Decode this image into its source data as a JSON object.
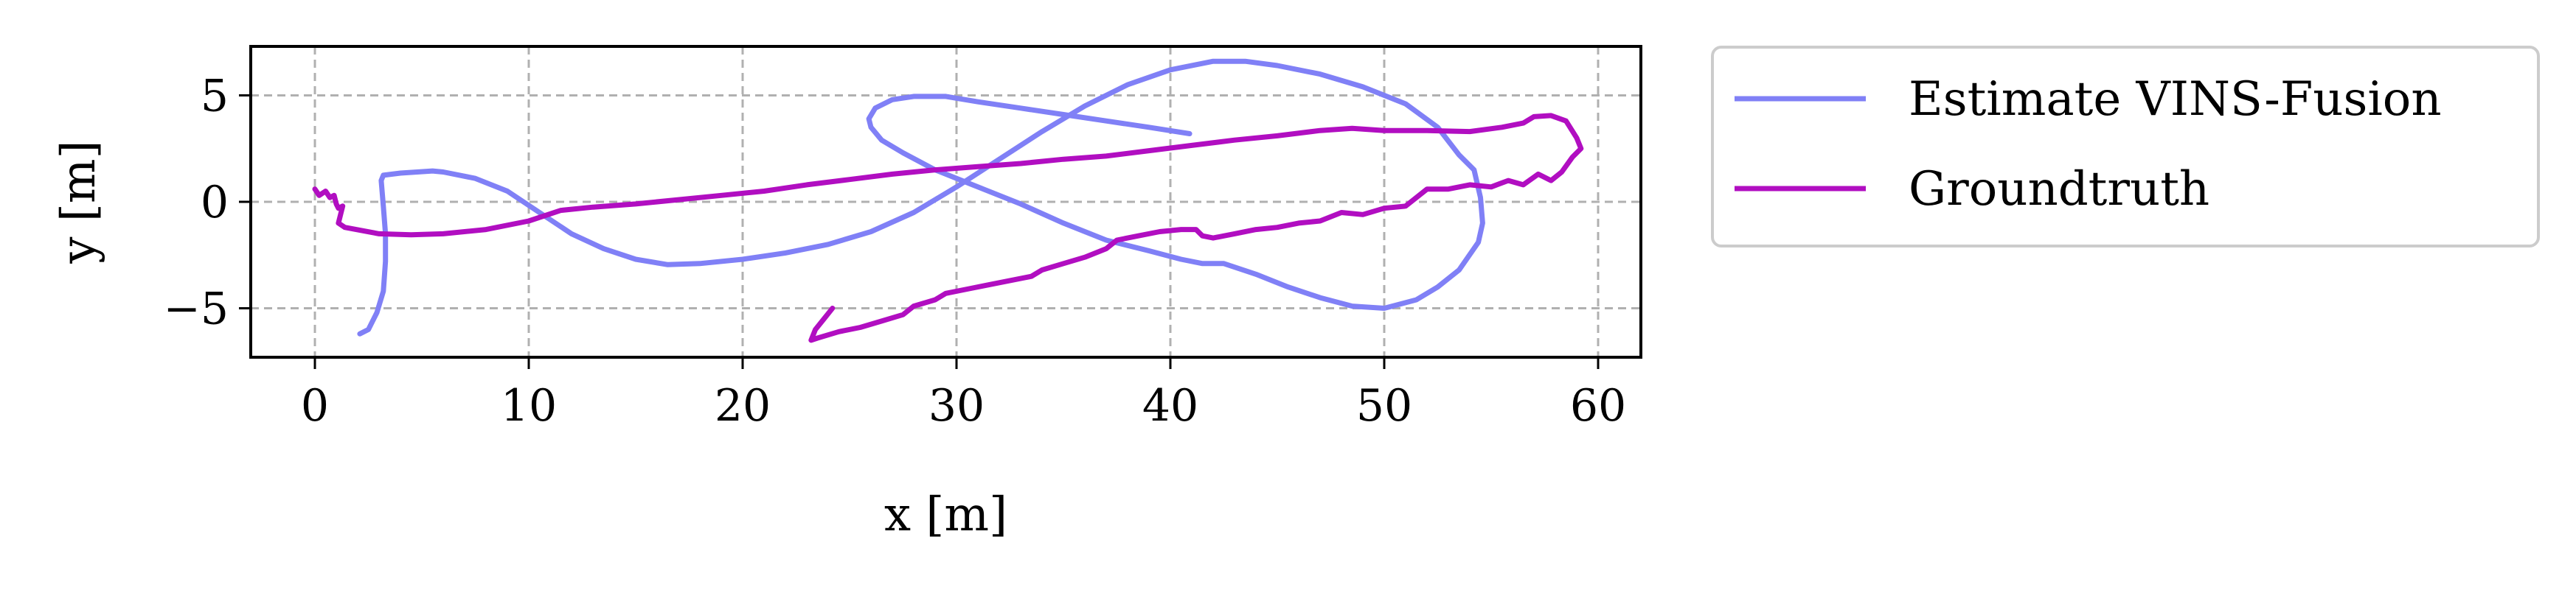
{
  "chart_data": {
    "type": "line",
    "title": "",
    "xlabel": "x [m]",
    "ylabel": "y [m]",
    "xlim": [
      -3,
      62
    ],
    "ylim": [
      -7.3,
      7.3
    ],
    "xticks": [
      0,
      10,
      20,
      30,
      40,
      50,
      60
    ],
    "xtick_labels": [
      "0",
      "10",
      "20",
      "30",
      "40",
      "50",
      "60"
    ],
    "yticks": [
      5,
      0,
      -5
    ],
    "ytick_labels": [
      "5",
      "0",
      "−5"
    ],
    "grid": true,
    "legend_placement": "outside-right-top",
    "series": [
      {
        "name": "Estimate VINS-Fusion",
        "color": "#8080f6",
        "points": [
          [
            2.1,
            -6.2
          ],
          [
            2.5,
            -6.0
          ],
          [
            2.9,
            -5.2
          ],
          [
            3.2,
            -4.2
          ],
          [
            3.3,
            -2.8
          ],
          [
            3.3,
            -1.5
          ],
          [
            3.2,
            -0.2
          ],
          [
            3.1,
            1.0
          ],
          [
            3.2,
            1.25
          ],
          [
            4.0,
            1.35
          ],
          [
            5.5,
            1.45
          ],
          [
            6.0,
            1.4
          ],
          [
            7.5,
            1.1
          ],
          [
            9.0,
            0.5
          ],
          [
            10.5,
            -0.5
          ],
          [
            12.0,
            -1.5
          ],
          [
            13.5,
            -2.2
          ],
          [
            15.0,
            -2.7
          ],
          [
            16.5,
            -2.95
          ],
          [
            18.0,
            -2.9
          ],
          [
            20.0,
            -2.7
          ],
          [
            22.0,
            -2.4
          ],
          [
            24.0,
            -2.0
          ],
          [
            26.0,
            -1.4
          ],
          [
            28.0,
            -0.5
          ],
          [
            30.0,
            0.7
          ],
          [
            32.0,
            2.0
          ],
          [
            34.0,
            3.3
          ],
          [
            36.0,
            4.5
          ],
          [
            38.0,
            5.5
          ],
          [
            40.0,
            6.2
          ],
          [
            42.0,
            6.6
          ],
          [
            43.5,
            6.6
          ],
          [
            45.0,
            6.4
          ],
          [
            47.0,
            6.0
          ],
          [
            49.0,
            5.4
          ],
          [
            51.0,
            4.6
          ],
          [
            52.5,
            3.5
          ],
          [
            53.5,
            2.2
          ],
          [
            54.2,
            1.5
          ],
          [
            54.5,
            0.2
          ],
          [
            54.6,
            -1.0
          ],
          [
            54.4,
            -1.9
          ],
          [
            53.5,
            -3.2
          ],
          [
            52.5,
            -4.0
          ],
          [
            51.5,
            -4.6
          ],
          [
            50.0,
            -5.0
          ],
          [
            48.5,
            -4.9
          ],
          [
            47.0,
            -4.5
          ],
          [
            45.5,
            -4.0
          ],
          [
            44.0,
            -3.4
          ],
          [
            42.5,
            -2.9
          ],
          [
            41.5,
            -2.9
          ],
          [
            40.5,
            -2.7
          ],
          [
            39.0,
            -2.3
          ],
          [
            37.0,
            -1.8
          ],
          [
            35.0,
            -1.0
          ],
          [
            33.0,
            -0.1
          ],
          [
            31.0,
            0.7
          ],
          [
            29.0,
            1.5
          ],
          [
            27.5,
            2.3
          ],
          [
            26.5,
            2.9
          ],
          [
            26.0,
            3.5
          ],
          [
            25.9,
            3.9
          ],
          [
            26.2,
            4.4
          ],
          [
            27.0,
            4.8
          ],
          [
            28.0,
            4.95
          ],
          [
            29.5,
            4.95
          ],
          [
            31.0,
            4.7
          ],
          [
            33.0,
            4.4
          ],
          [
            35.0,
            4.1
          ],
          [
            37.0,
            3.8
          ],
          [
            39.0,
            3.5
          ],
          [
            40.9,
            3.2
          ]
        ]
      },
      {
        "name": "Groundtruth",
        "color": "#b10ec1",
        "points": [
          [
            0.0,
            0.6
          ],
          [
            0.2,
            0.3
          ],
          [
            0.5,
            0.5
          ],
          [
            0.7,
            0.2
          ],
          [
            0.9,
            0.3
          ],
          [
            1.0,
            -0.1
          ],
          [
            1.1,
            -0.3
          ],
          [
            1.3,
            -0.2
          ],
          [
            1.2,
            -0.6
          ],
          [
            1.1,
            -1.0
          ],
          [
            1.4,
            -1.2
          ],
          [
            3.0,
            -1.5
          ],
          [
            4.5,
            -1.55
          ],
          [
            6.0,
            -1.5
          ],
          [
            8.0,
            -1.3
          ],
          [
            10.0,
            -0.9
          ],
          [
            11.5,
            -0.4
          ],
          [
            13.0,
            -0.25
          ],
          [
            15.0,
            -0.1
          ],
          [
            17.0,
            0.1
          ],
          [
            19.0,
            0.3
          ],
          [
            21.0,
            0.5
          ],
          [
            23.0,
            0.8
          ],
          [
            25.0,
            1.05
          ],
          [
            27.0,
            1.3
          ],
          [
            29.0,
            1.5
          ],
          [
            31.0,
            1.65
          ],
          [
            33.0,
            1.8
          ],
          [
            35.0,
            2.0
          ],
          [
            37.0,
            2.15
          ],
          [
            39.0,
            2.4
          ],
          [
            41.0,
            2.65
          ],
          [
            43.0,
            2.9
          ],
          [
            45.0,
            3.1
          ],
          [
            47.0,
            3.35
          ],
          [
            48.5,
            3.45
          ],
          [
            50.0,
            3.35
          ],
          [
            52.0,
            3.35
          ],
          [
            54.0,
            3.3
          ],
          [
            55.5,
            3.5
          ],
          [
            56.5,
            3.7
          ],
          [
            57.0,
            4.0
          ],
          [
            57.8,
            4.05
          ],
          [
            58.5,
            3.8
          ],
          [
            59.0,
            3.0
          ],
          [
            59.2,
            2.5
          ],
          [
            58.8,
            2.1
          ],
          [
            58.3,
            1.4
          ],
          [
            57.8,
            1.0
          ],
          [
            57.2,
            1.3
          ],
          [
            56.5,
            0.8
          ],
          [
            55.8,
            1.0
          ],
          [
            55.0,
            0.7
          ],
          [
            54.0,
            0.8
          ],
          [
            53.0,
            0.6
          ],
          [
            52.0,
            0.6
          ],
          [
            51.0,
            -0.2
          ],
          [
            50.0,
            -0.3
          ],
          [
            49.0,
            -0.6
          ],
          [
            48.0,
            -0.5
          ],
          [
            47.0,
            -0.9
          ],
          [
            46.0,
            -1.0
          ],
          [
            45.0,
            -1.2
          ],
          [
            44.0,
            -1.3
          ],
          [
            43.0,
            -1.5
          ],
          [
            42.0,
            -1.7
          ],
          [
            41.5,
            -1.6
          ],
          [
            41.2,
            -1.3
          ],
          [
            40.5,
            -1.3
          ],
          [
            39.5,
            -1.4
          ],
          [
            38.5,
            -1.6
          ],
          [
            37.5,
            -1.8
          ],
          [
            37.0,
            -2.2
          ],
          [
            36.0,
            -2.6
          ],
          [
            35.0,
            -2.9
          ],
          [
            34.0,
            -3.2
          ],
          [
            33.5,
            -3.5
          ],
          [
            32.5,
            -3.7
          ],
          [
            31.5,
            -3.9
          ],
          [
            30.5,
            -4.1
          ],
          [
            29.5,
            -4.3
          ],
          [
            29.0,
            -4.6
          ],
          [
            28.0,
            -4.9
          ],
          [
            27.5,
            -5.3
          ],
          [
            26.5,
            -5.6
          ],
          [
            25.5,
            -5.9
          ],
          [
            24.5,
            -6.1
          ],
          [
            23.5,
            -6.4
          ],
          [
            23.2,
            -6.5
          ],
          [
            23.4,
            -6.0
          ],
          [
            23.8,
            -5.5
          ],
          [
            24.2,
            -5.0
          ]
        ]
      }
    ]
  }
}
